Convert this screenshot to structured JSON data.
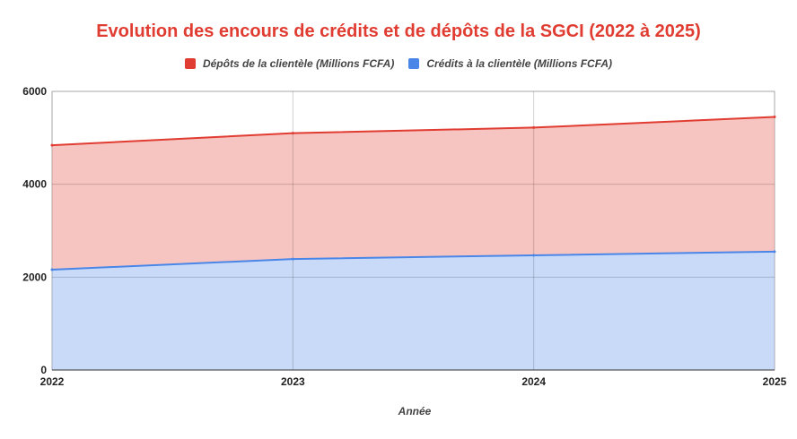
{
  "chart_data": {
    "type": "area",
    "title": "Evolution des encours de crédits et de dépôts de la SGCI (2022 à 2025)",
    "xlabel": "Année",
    "ylabel": "",
    "x": [
      "2022",
      "2023",
      "2024",
      "2025"
    ],
    "ylim": [
      0,
      6000
    ],
    "yticks": [
      "0",
      "2000",
      "4000",
      "6000"
    ],
    "grid": true,
    "legend": "top",
    "series": [
      {
        "name": "Dépôts de la clientèle (Millions FCFA)",
        "values": [
          4840,
          5100,
          5220,
          5450
        ],
        "color": "#e03c31",
        "fill": "#f7c5c1"
      },
      {
        "name": "Crédits à la clientèle (Millions FCFA)",
        "values": [
          2160,
          2390,
          2470,
          2550
        ],
        "color": "#4a86e8",
        "fill": "#c9daf8"
      }
    ]
  }
}
